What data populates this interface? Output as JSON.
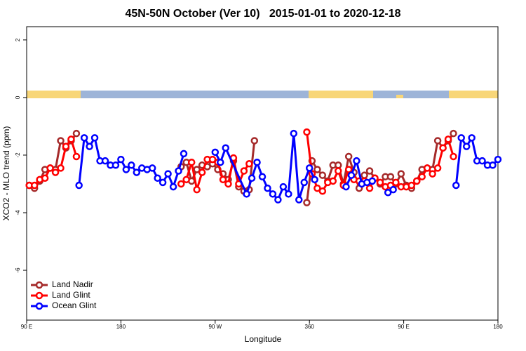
{
  "chart_data": {
    "type": "line",
    "title": "45N-50N October (Ver 10)   2015-01-01 to 2020-12-18",
    "xlabel": "Longitude",
    "ylabel": "XCO2 - MLO trend (ppm)",
    "xlim": [
      90,
      540
    ],
    "ylim": [
      -7.73,
      2.46
    ],
    "xticks": [
      {
        "value": 90,
        "label": "90 E"
      },
      180,
      {
        "value": 270,
        "label": "90 W"
      },
      360,
      {
        "value": 450,
        "label": "90 E"
      },
      {
        "value": 540,
        "label": "180"
      }
    ],
    "yticks": [
      -6,
      -4,
      -2,
      0,
      2
    ],
    "legend": "bottom-left",
    "series": [
      {
        "name": "Land Nadir",
        "color": "#a52a2a",
        "x": [
          92.5,
          97.5,
          102.5,
          107.5,
          112.5,
          117.5,
          122.5,
          127.5,
          132.5,
          137.5,
          null,
          237.5,
          242.5,
          247.5,
          252.5,
          257.5,
          262.5,
          267.5,
          272.5,
          277.5,
          282.5,
          287.5,
          292.5,
          297.5,
          302.5,
          307.5,
          null,
          357.5,
          362.5,
          367.5,
          372.5,
          377.5,
          382.5,
          387.5,
          392.5,
          397.5,
          402.5,
          407.5,
          412.5,
          417.5,
          422.5,
          427.5,
          432.5,
          437.5,
          442.5,
          447.5,
          452.5,
          457.5,
          462.5,
          467.5,
          472.5,
          477.5,
          482.5,
          487.5,
          492.5,
          497.5
        ],
        "values": [
          -3.05,
          -3.15,
          -2.9,
          -2.5,
          -2.45,
          -2.5,
          -1.5,
          -1.75,
          -1.5,
          -1.25,
          null,
          -2.4,
          -2.25,
          -2.9,
          -2.5,
          -2.35,
          -2.4,
          -2.3,
          -2.5,
          -2.65,
          -2.85,
          -2.2,
          -3.1,
          -3.25,
          -3.2,
          -1.5,
          null,
          -3.65,
          -2.2,
          -2.5,
          -2.7,
          -2.9,
          -2.35,
          -2.35,
          -3.0,
          -2.05,
          -2.6,
          -3.15,
          -2.7,
          -2.55,
          -2.8,
          -3.0,
          -2.75,
          -2.75,
          -3.0,
          -2.65,
          -3.05,
          -3.15,
          -2.9,
          -2.5,
          -2.45,
          -2.5,
          -1.5,
          -1.75,
          -1.5,
          -1.25
        ]
      },
      {
        "name": "Land Glint",
        "color": "#ff0000",
        "x": [
          92.5,
          97.5,
          102.5,
          107.5,
          112.5,
          117.5,
          122.5,
          127.5,
          132.5,
          137.5,
          null,
          237.5,
          242.5,
          247.5,
          252.5,
          257.5,
          262.5,
          267.5,
          272.5,
          277.5,
          282.5,
          287.5,
          292.5,
          297.5,
          302.5,
          null,
          357.5,
          362.5,
          367.5,
          372.5,
          377.5,
          382.5,
          387.5,
          392.5,
          397.5,
          402.5,
          407.5,
          412.5,
          417.5,
          422.5,
          427.5,
          432.5,
          437.5,
          442.5,
          447.5,
          452.5,
          457.5,
          462.5,
          467.5,
          472.5,
          477.5,
          482.5,
          487.5,
          492.5,
          497.5
        ],
        "values": [
          -3.05,
          -3.05,
          -2.85,
          -2.8,
          -2.45,
          -2.6,
          -2.45,
          -1.7,
          -1.45,
          -2.05,
          null,
          -3.0,
          -2.85,
          -2.25,
          -3.2,
          -2.6,
          -2.15,
          -2.15,
          -2.25,
          -2.85,
          -3.0,
          -2.1,
          -3.0,
          -2.55,
          -2.3,
          null,
          -1.2,
          -2.65,
          -3.15,
          -3.25,
          -2.95,
          -2.9,
          -2.55,
          -3.05,
          -2.5,
          -2.85,
          -2.9,
          -2.9,
          -3.15,
          -2.8,
          -2.95,
          -3.1,
          -3.05,
          -2.95,
          -3.1,
          -3.1,
          -3.05,
          -2.9,
          -2.75,
          -2.45,
          -2.65,
          -2.45,
          -1.75,
          -1.45,
          -2.05
        ]
      },
      {
        "name": "Ocean Glint",
        "color": "#0000ff",
        "x": [
          140,
          145,
          150,
          155,
          160,
          165,
          170,
          175,
          180,
          185,
          190,
          195,
          200,
          205,
          210,
          215,
          220,
          225,
          230,
          235,
          240,
          null,
          270,
          275,
          280,
          300,
          305,
          310,
          315,
          320,
          325,
          330,
          335,
          340,
          345,
          350,
          355,
          360,
          365,
          null,
          395,
          400,
          405,
          410,
          415,
          420,
          null,
          435,
          440,
          null,
          500,
          505,
          510,
          515,
          520,
          525,
          530,
          535,
          540
        ],
        "values": [
          -3.05,
          -1.4,
          -1.7,
          -1.4,
          -2.2,
          -2.2,
          -2.35,
          -2.35,
          -2.15,
          -2.5,
          -2.35,
          -2.6,
          -2.45,
          -2.5,
          -2.45,
          -2.8,
          -2.95,
          -2.65,
          -3.1,
          -2.55,
          -1.95,
          null,
          -1.9,
          -2.25,
          -1.75,
          -3.35,
          -2.8,
          -2.25,
          -2.75,
          -3.15,
          -3.35,
          -3.55,
          -3.1,
          -3.35,
          -1.25,
          -3.55,
          -2.95,
          -2.45,
          -2.85,
          null,
          -3.1,
          -2.7,
          -2.2,
          -3.0,
          -2.95,
          -2.9,
          null,
          -3.3,
          -3.2,
          null,
          -3.05,
          -1.4,
          -1.7,
          -1.4,
          -2.2,
          -2.2,
          -2.35,
          -2.35,
          -2.15
        ]
      }
    ]
  }
}
